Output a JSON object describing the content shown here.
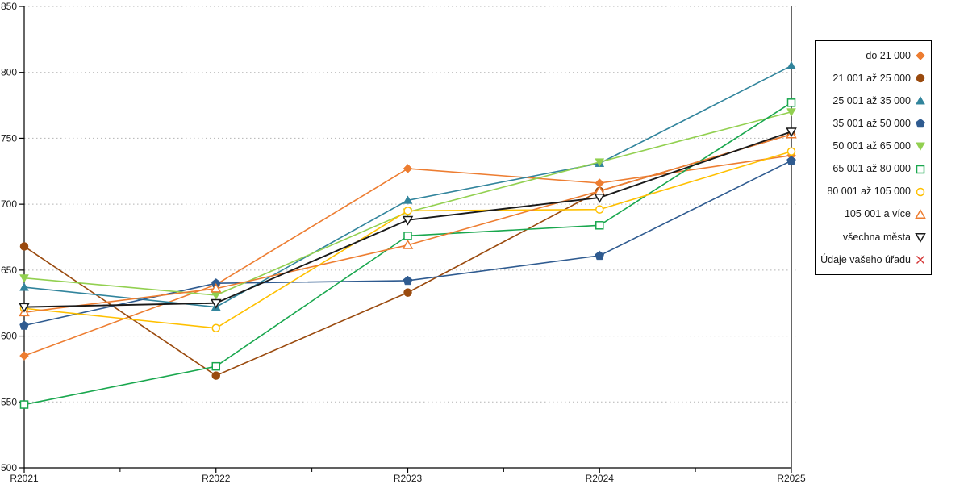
{
  "chart_data": {
    "type": "line",
    "title": "",
    "xlabel": "",
    "ylabel": "",
    "x": [
      "R2021",
      "R2022",
      "R2023",
      "R2024",
      "R2025"
    ],
    "ylim": [
      500,
      850
    ],
    "ytick_step": 50,
    "grid": "horizontal-dotted",
    "legend_position": "right-outside",
    "highlight_x": "R2025",
    "axis_color": "#000000",
    "gridline_color": "#b3b3b3",
    "series": [
      {
        "name": "do 21 000",
        "color": "#ED7D31",
        "marker": "diamond",
        "fill": "solid",
        "values": [
          585,
          639,
          727,
          716,
          737
        ]
      },
      {
        "name": "21 001 až 25 000",
        "color": "#9A4A0E",
        "marker": "circle",
        "fill": "solid",
        "values": [
          668,
          570,
          633,
          710,
          753
        ]
      },
      {
        "name": "25 001 až 35 000",
        "color": "#31849C",
        "marker": "triangle-up",
        "fill": "solid",
        "values": [
          637,
          622,
          703,
          731,
          805
        ]
      },
      {
        "name": "35 001 až 50 000",
        "color": "#2F5B90",
        "marker": "pentagon",
        "fill": "solid",
        "values": [
          608,
          640,
          642,
          661,
          733
        ]
      },
      {
        "name": "50 001 až 65 000",
        "color": "#92D050",
        "marker": "triangle-down",
        "fill": "solid",
        "values": [
          644,
          631,
          694,
          732,
          770
        ]
      },
      {
        "name": "65 001 až 80 000",
        "color": "#19A74E",
        "marker": "square",
        "fill": "open",
        "values": [
          548,
          577,
          676,
          684,
          777
        ]
      },
      {
        "name": "80 001 až 105 000",
        "color": "#FFC000",
        "marker": "circle",
        "fill": "open",
        "values": [
          621,
          606,
          695,
          696,
          740
        ]
      },
      {
        "name": "105 001 a více",
        "color": "#ED7D31",
        "marker": "triangle-up",
        "fill": "open",
        "values": [
          618,
          636,
          669,
          710,
          753
        ]
      },
      {
        "name": "všechna města",
        "color": "#1A1A1A",
        "marker": "triangle-down",
        "fill": "open",
        "values": [
          622,
          625,
          688,
          705,
          755
        ]
      },
      {
        "name": "Údaje vašeho úřadu",
        "color": "#D43434",
        "marker": "x",
        "fill": "open",
        "values": []
      }
    ]
  }
}
